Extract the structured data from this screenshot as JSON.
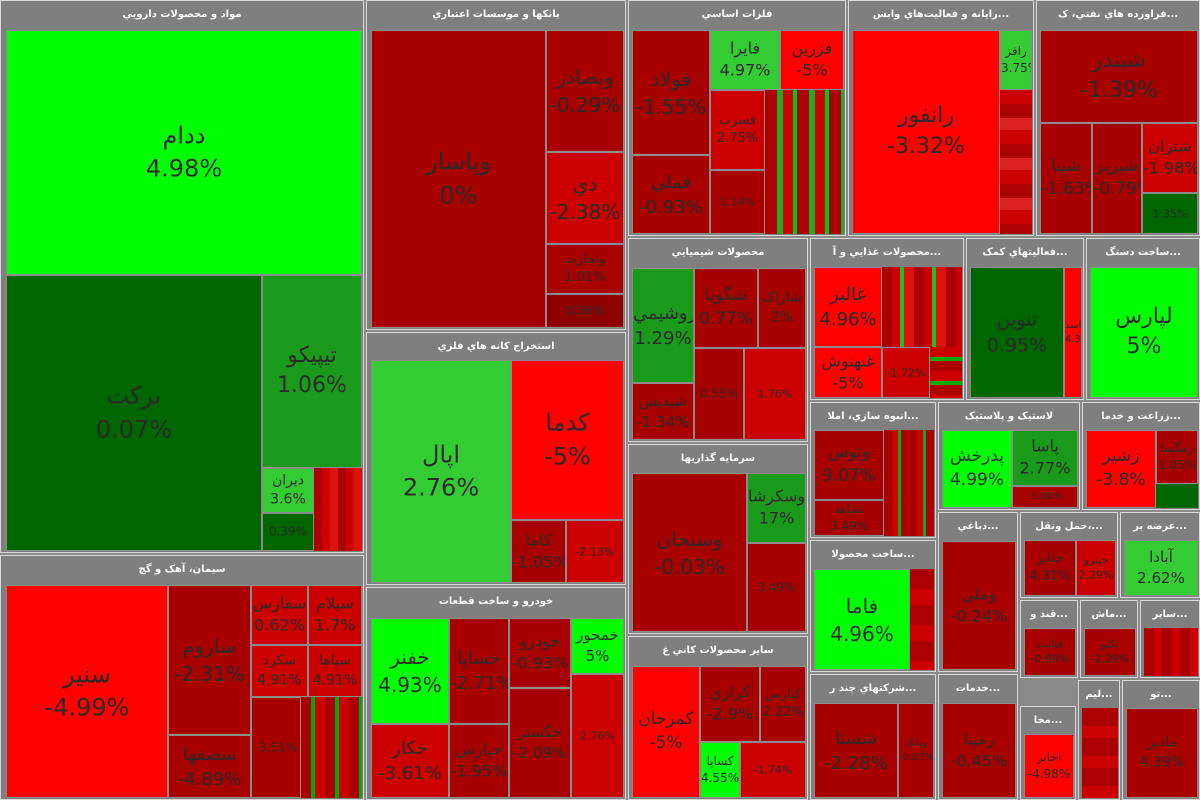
{
  "sectors": [
    {
      "title": "مواد و محصولات دارويي",
      "tiles": [
        {
          "name": "ددام",
          "pct": "4.98%"
        },
        {
          "name": "برکت",
          "pct": "0.07%"
        },
        {
          "name": "تيپيکو",
          "pct": "1.06%"
        },
        {
          "name": "ديران",
          "pct": "3.6%"
        },
        {
          "name": "",
          "pct": "0.39%"
        }
      ]
    },
    {
      "title": "سيمان، آهک و گچ",
      "tiles": [
        {
          "name": "سنير",
          "pct": "-4.99%"
        },
        {
          "name": "ساروم",
          "pct": "-2.31%"
        },
        {
          "name": "سفارس",
          "pct": "0.62%"
        },
        {
          "name": "سيلام",
          "pct": "1.7%"
        },
        {
          "name": "سکرد",
          "pct": "4.91%"
        },
        {
          "name": "سپاها",
          "pct": "4.91%"
        },
        {
          "name": "سصفها",
          "pct": "-4.89%"
        },
        {
          "name": "",
          "pct": "-3.51%"
        }
      ]
    },
    {
      "title": "بانکها و موسسات اعتباري",
      "tiles": [
        {
          "name": "وپاسار",
          "pct": "0%"
        },
        {
          "name": "وبصادر",
          "pct": "-0.29%"
        },
        {
          "name": "دي",
          "pct": "-2.38%"
        },
        {
          "name": "وتجارت",
          "pct": "1.01%"
        },
        {
          "name": "",
          "pct": "0.56%"
        }
      ]
    },
    {
      "title": "استخراج کانه هاي فلزي",
      "tiles": [
        {
          "name": "اپال",
          "pct": "2.76%"
        },
        {
          "name": "کدما",
          "pct": "-5%"
        },
        {
          "name": "کاما",
          "pct": "-1.05%"
        },
        {
          "name": "",
          "pct": "-2.13%"
        }
      ]
    },
    {
      "title": "خودرو و ساخت قطعات",
      "tiles": [
        {
          "name": "خفنر",
          "pct": "4.93%"
        },
        {
          "name": "خساپا",
          "pct": "-2.71%"
        },
        {
          "name": "خودرو",
          "pct": "-0.93%"
        },
        {
          "name": "خمحور",
          "pct": "5%"
        },
        {
          "name": "خکار",
          "pct": "-3.61%"
        },
        {
          "name": "خپارس",
          "pct": "-1.95%"
        },
        {
          "name": "خگستر",
          "pct": "-2.09%"
        },
        {
          "name": "",
          "pct": "2.76%"
        }
      ]
    },
    {
      "title": "فلزات اساسي",
      "tiles": [
        {
          "name": "فولاد",
          "pct": "-1.55%"
        },
        {
          "name": "فايرا",
          "pct": "4.97%"
        },
        {
          "name": "فزرين",
          "pct": "-5%"
        },
        {
          "name": "فملي",
          "pct": "-0.93%"
        },
        {
          "name": "فسرب",
          "pct": "2.75%"
        },
        {
          "name": "",
          "pct": "1.14%"
        }
      ]
    },
    {
      "title": "محصولات شيميايي",
      "tiles": [
        {
          "name": "پتروشيمي",
          "pct": "1.29%"
        },
        {
          "name": "شگويا",
          "pct": "0.77%"
        },
        {
          "name": "شاراک",
          "pct": "2%"
        },
        {
          "name": "شپديس",
          "pct": "-1.34%"
        },
        {
          "name": "",
          "pct": "0.55%"
        },
        {
          "name": "",
          "pct": "1.76%"
        }
      ]
    },
    {
      "title": "سرمايه گذاريها",
      "tiles": [
        {
          "name": "وسبحان",
          "pct": "-0.03%"
        },
        {
          "name": "وسکرشا",
          "pct": "17%"
        },
        {
          "name": "",
          "pct": "3.49%"
        }
      ]
    },
    {
      "title": "ساير محصولات کاني غ",
      "tiles": [
        {
          "name": "کمرجان",
          "pct": "-5%"
        },
        {
          "name": "کرازي",
          "pct": "-2.9%"
        },
        {
          "name": "کساپا",
          "pct": "4.55%"
        },
        {
          "name": "کپارس",
          "pct": "2.22%"
        },
        {
          "name": "",
          "pct": "-1.74%"
        }
      ]
    },
    {
      "title": "رايانه و فعاليت‌هاي وابس...",
      "tiles": [
        {
          "name": "رانفور",
          "pct": "-3.32%"
        },
        {
          "name": "رافز",
          "pct": "3.75%"
        }
      ]
    },
    {
      "title": "فراورده هاي نفتي، ک...",
      "tiles": [
        {
          "name": "شبندر",
          "pct": "-1.39%"
        },
        {
          "name": "شپنا",
          "pct": "-1.63%"
        },
        {
          "name": "شبريز",
          "pct": "-0.79%"
        },
        {
          "name": "شتران",
          "pct": "-1.98%"
        },
        {
          "name": "",
          "pct": "1.35%"
        }
      ]
    },
    {
      "title": "محصولات غذايي و آ...",
      "tiles": [
        {
          "name": "غالبر",
          "pct": "4.96%"
        },
        {
          "name": "غبهنوش",
          "pct": "-5%"
        },
        {
          "name": "",
          "pct": "-1.72%"
        }
      ]
    },
    {
      "title": "فعاليتهاي کمک...",
      "tiles": [
        {
          "name": "تنوين",
          "pct": "0.95%"
        },
        {
          "name": "اسد",
          "pct": "4.38%"
        }
      ]
    },
    {
      "title": "ساخت دستگ...",
      "tiles": [
        {
          "name": "لپارس",
          "pct": "5%"
        }
      ]
    },
    {
      "title": "انبوه سازي، املا...",
      "tiles": [
        {
          "name": "وتوس",
          "pct": "9.07%"
        },
        {
          "name": "ثشاهد",
          "pct": "3.49%"
        }
      ]
    },
    {
      "title": "لاستيک و پلاستيک",
      "tiles": [
        {
          "name": "پدرخش",
          "pct": "4.99%"
        },
        {
          "name": "پاسا",
          "pct": "2.77%"
        },
        {
          "name": "",
          "pct": "-1.06%"
        }
      ]
    },
    {
      "title": "زراعت و خدما...",
      "tiles": [
        {
          "name": "زشير",
          "pct": "-3.8%"
        },
        {
          "name": "زمگسا",
          "pct": "1.05%"
        }
      ]
    },
    {
      "title": "ساخت محصولا...",
      "tiles": [
        {
          "name": "فاما",
          "pct": "4.96%"
        }
      ]
    },
    {
      "title": "دباغي...",
      "tiles": [
        {
          "name": "وملي",
          "pct": "-0.24%"
        }
      ]
    },
    {
      "title": "حمل ونقل،...",
      "tiles": [
        {
          "name": "حتاير",
          "pct": "4.31%"
        },
        {
          "name": "حپترو",
          "pct": "2.29%"
        }
      ]
    },
    {
      "title": "عرضه بر...",
      "tiles": [
        {
          "name": "آبادا",
          "pct": "2.62%"
        }
      ]
    },
    {
      "title": "قند و...",
      "tiles": [
        {
          "name": "قثابت",
          "pct": "-0.99%"
        }
      ]
    },
    {
      "title": "ماش...",
      "tiles": [
        {
          "name": "تکنو",
          "pct": "-2.29%"
        }
      ]
    },
    {
      "title": "ساير...",
      "tiles": []
    },
    {
      "title": "شرکتهاي چند ر...",
      "tiles": [
        {
          "name": "شستا",
          "pct": "-2.28%"
        },
        {
          "name": "وبانک",
          "pct": "-0.87%"
        }
      ]
    },
    {
      "title": "خدمات...",
      "tiles": [
        {
          "name": "رمپنا",
          "pct": "-0.45%"
        }
      ]
    },
    {
      "title": "مخا...",
      "tiles": [
        {
          "name": "اخابر",
          "pct": "-4.98%"
        }
      ]
    },
    {
      "title": "ليم...",
      "tiles": []
    },
    {
      "title": "تو...",
      "tiles": [
        {
          "name": "مادير",
          "pct": "4.39%"
        }
      ]
    }
  ]
}
